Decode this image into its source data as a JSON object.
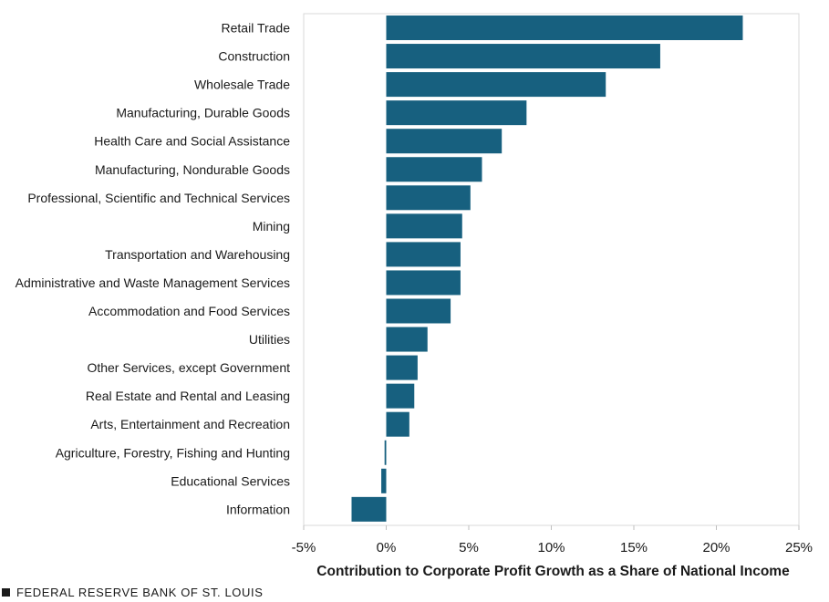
{
  "chart_data": {
    "type": "bar",
    "orientation": "horizontal",
    "categories": [
      "Retail Trade",
      "Construction",
      "Wholesale Trade",
      "Manufacturing, Durable Goods",
      "Health Care and Social Assistance",
      "Manufacturing, Nondurable Goods",
      "Professional, Scientific and Technical Services",
      "Mining",
      "Transportation and Warehousing",
      "Administrative and Waste Management Services",
      "Accommodation and Food Services",
      "Utilities",
      "Other Services, except Government",
      "Real Estate and Rental and Leasing",
      "Arts, Entertainment and Recreation",
      "Agriculture, Forestry, Fishing and Hunting",
      "Educational Services",
      "Information"
    ],
    "values": [
      21.6,
      16.6,
      13.3,
      8.5,
      7.0,
      5.8,
      5.1,
      4.6,
      4.5,
      4.5,
      3.9,
      2.5,
      1.9,
      1.7,
      1.4,
      -0.1,
      -0.3,
      -2.1
    ],
    "title": "",
    "xlabel": "Contribution to Corporate Profit Growth as a Share of National Income",
    "ylabel": "",
    "xlim": [
      -5,
      25
    ],
    "xticks": [
      -5,
      0,
      5,
      10,
      15,
      20,
      25
    ],
    "xtick_labels": [
      "-5%",
      "0%",
      "5%",
      "10%",
      "15%",
      "20%",
      "25%"
    ],
    "grid": false,
    "bar_color": "#17607f",
    "frame_color": "#d9d9d9"
  },
  "footer": {
    "source": "FEDERAL RESERVE BANK OF ST. LOUIS"
  }
}
